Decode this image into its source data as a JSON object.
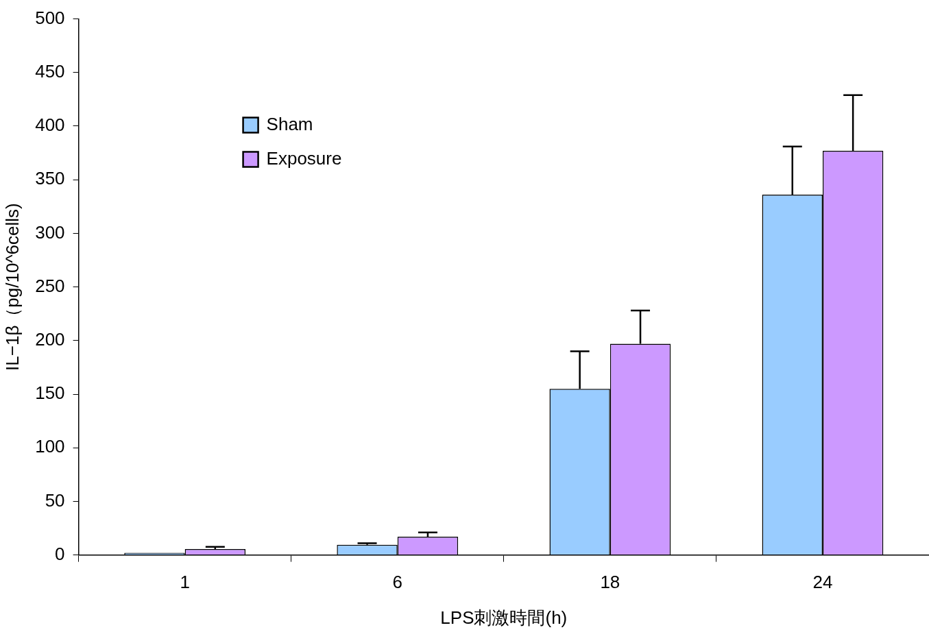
{
  "chart_data": {
    "type": "bar",
    "xlabel": "LPS刺激時間(h)",
    "ylabel": "IL−1β（pg/10^6cells)",
    "categories": [
      "1",
      "6",
      "18",
      "24"
    ],
    "series": [
      {
        "name": "Sham",
        "color": "#99ccff",
        "values": [
          2,
          9.5,
          155,
          336
        ],
        "errors": [
          null,
          [
            9.5,
            11
          ],
          [
            155,
            190
          ],
          [
            336,
            381
          ]
        ]
      },
      {
        "name": "Exposure",
        "color": "#cc99ff",
        "values": [
          5.5,
          17,
          197,
          377
        ],
        "errors": [
          [
            5.5,
            7.5
          ],
          [
            17,
            21
          ],
          [
            197,
            228
          ],
          [
            377,
            429
          ]
        ]
      }
    ],
    "ylim": [
      0,
      500
    ],
    "yticks": [
      0,
      50,
      100,
      150,
      200,
      250,
      300,
      350,
      400,
      450,
      500
    ],
    "grid": false,
    "legend": "top left"
  }
}
